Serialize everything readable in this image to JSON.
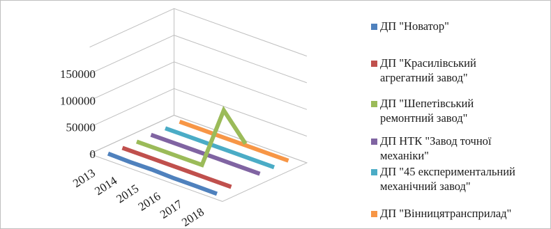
{
  "chart_data": {
    "type": "line",
    "subtype": "3d-line",
    "title": "",
    "xlabel": "",
    "ylabel": "",
    "categories": [
      "2013",
      "2014",
      "2015",
      "2016",
      "2017",
      "2018"
    ],
    "ylim": [
      0,
      150000
    ],
    "yticks": [
      "0",
      "50000",
      "100000",
      "150000"
    ],
    "grid": true,
    "legend_position": "right",
    "series": [
      {
        "name": "ДП \"Новатор\"",
        "color": "#4f81bd",
        "values": [
          3000,
          2000,
          2500,
          1000,
          1200,
          800
        ]
      },
      {
        "name": "ДП \"Красилівський\nагрегатний завод\"",
        "color": "#c0504d",
        "values": [
          1500,
          1500,
          1500,
          1500,
          1500,
          1500
        ]
      },
      {
        "name": "ДП \"Шепетівський\nремонтний завод\"",
        "color": "#9bbb59",
        "values": [
          1000,
          1000,
          1000,
          1000,
          118000,
          70000
        ]
      },
      {
        "name": "ДП НТК \"Завод точної\nмеханіки\"",
        "color": "#8064a2",
        "values": [
          1500,
          1500,
          1500,
          1500,
          1500,
          1500
        ]
      },
      {
        "name": "ДП \"45 експериментальний\nмеханічний завод\"",
        "color": "#4bacc6",
        "values": [
          1500,
          1500,
          1500,
          1500,
          1500,
          1500
        ]
      },
      {
        "name": "ДП \"Вінницятрансприлад\"",
        "color": "#f79646",
        "values": [
          1500,
          1500,
          1500,
          1500,
          1500,
          1500
        ]
      }
    ]
  }
}
